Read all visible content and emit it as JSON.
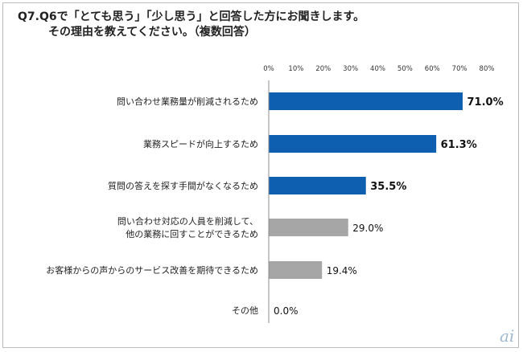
{
  "title": {
    "line1": "Q7.Q6で「とても思う」「少し思う」と回答した方にお聞きします。",
    "line2": "その理由を教えてください。（複数回答）"
  },
  "chart_data": {
    "type": "bar",
    "orientation": "horizontal",
    "categories": [
      [
        "問い合わせ業務量が削減されるため"
      ],
      [
        "業務スピードが向上するため"
      ],
      [
        "質問の答えを探す手間がなくなるため"
      ],
      [
        "問い合わせ対応の人員を削減して、",
        "他の業務に回すことができるため"
      ],
      [
        "お客様からの声からのサービス改善を期待できるため"
      ],
      [
        "その他"
      ]
    ],
    "values": [
      71.0,
      61.3,
      35.5,
      29.0,
      19.4,
      0.0
    ],
    "value_labels": [
      "71.0%",
      "61.3%",
      "35.5%",
      "29.0%",
      "19.4%",
      "0.0%"
    ],
    "highlighted": [
      true,
      true,
      true,
      false,
      false,
      false
    ],
    "xlim": [
      0,
      80
    ],
    "xticks": [
      0,
      10,
      20,
      30,
      40,
      50,
      60,
      70,
      80
    ],
    "xtick_labels": [
      "0%",
      "10%",
      "20%",
      "30%",
      "40%",
      "50%",
      "60%",
      "70%",
      "80%"
    ],
    "tick_position": "top",
    "grid": false,
    "colors": {
      "highlight": "#0f5fb0",
      "normal": "#a6a6a6"
    }
  },
  "watermark": {
    "text": "ai",
    "color": "#9fb8cf"
  }
}
